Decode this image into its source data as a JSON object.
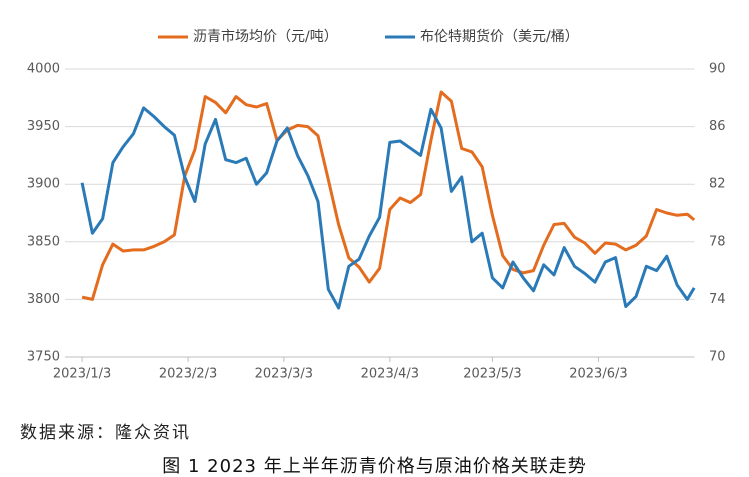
{
  "chart_data": {
    "type": "line",
    "title": "图 1  2023 年上半年沥青价格与原油价格关联走势",
    "source": "数据来源：隆众资讯",
    "x": [
      "2023/1/3",
      "2023/1/6",
      "2023/1/9",
      "2023/1/12",
      "2023/1/15",
      "2023/1/18",
      "2023/1/21",
      "2023/1/24",
      "2023/1/27",
      "2023/1/30",
      "2023/2/2",
      "2023/2/5",
      "2023/2/8",
      "2023/2/11",
      "2023/2/14",
      "2023/2/17",
      "2023/2/20",
      "2023/2/23",
      "2023/2/26",
      "2023/3/1",
      "2023/3/4",
      "2023/3/7",
      "2023/3/10",
      "2023/3/13",
      "2023/3/16",
      "2023/3/19",
      "2023/3/22",
      "2023/3/25",
      "2023/3/28",
      "2023/3/31",
      "2023/4/3",
      "2023/4/6",
      "2023/4/9",
      "2023/4/12",
      "2023/4/15",
      "2023/4/18",
      "2023/4/21",
      "2023/4/24",
      "2023/4/27",
      "2023/4/30",
      "2023/5/3",
      "2023/5/6",
      "2023/5/9",
      "2023/5/12",
      "2023/5/15",
      "2023/5/18",
      "2023/5/21",
      "2023/5/24",
      "2023/5/27",
      "2023/5/30",
      "2023/6/2",
      "2023/6/5",
      "2023/6/8",
      "2023/6/11",
      "2023/6/14",
      "2023/6/17",
      "2023/6/20",
      "2023/6/23",
      "2023/6/26",
      "2023/6/29",
      "2023/7/1"
    ],
    "series": [
      {
        "name": "沥青市场均价（元/吨）",
        "color": "#e46c1e",
        "values": [
          3802,
          3800,
          3830,
          3848,
          3842,
          3843,
          3843,
          3846,
          3850,
          3856,
          3907,
          3930,
          3976,
          3971,
          3962,
          3976,
          3969,
          3967,
          3970,
          3938,
          3947,
          3951,
          3950,
          3942,
          3904,
          3865,
          3836,
          3828,
          3815,
          3827,
          3878,
          3888,
          3884,
          3891,
          3938,
          3980,
          3972,
          3931,
          3928,
          3915,
          3873,
          3838,
          3826,
          3823,
          3825,
          3847,
          3865,
          3866,
          3854,
          3849,
          3840,
          3849,
          3848,
          3843,
          3847,
          3855,
          3878,
          3875,
          3873,
          3874,
          3869
        ]
      },
      {
        "name": "布伦特期货价（美元/桶）",
        "color": "#2a7ab8",
        "axis": "y2",
        "values": [
          82.1,
          78.6,
          79.6,
          83.5,
          84.6,
          85.5,
          87.3,
          86.7,
          86.0,
          85.4,
          82.5,
          80.8,
          84.8,
          86.5,
          83.7,
          83.5,
          83.8,
          82.0,
          82.8,
          85.0,
          85.9,
          84.0,
          82.6,
          80.8,
          74.7,
          73.4,
          76.3,
          76.8,
          78.4,
          79.7,
          84.9,
          85.0,
          84.5,
          84.0,
          87.2,
          85.9,
          81.5,
          82.5,
          78.0,
          78.6,
          75.5,
          74.8,
          76.6,
          75.5,
          74.6,
          76.4,
          75.7,
          77.6,
          76.3,
          75.8,
          75.2,
          76.6,
          76.9,
          73.5,
          74.2,
          76.3,
          76.0,
          77.0,
          75.0,
          74.0,
          74.8
        ]
      }
    ],
    "xlim": [
      "2022/12/29",
      "2023/7/2"
    ],
    "xticks": [
      "2023/1/3",
      "2023/2/3",
      "2023/3/3",
      "2023/4/3",
      "2023/5/3",
      "2023/6/3"
    ],
    "ylim": [
      3750,
      4000
    ],
    "yticks": [
      3750,
      3800,
      3850,
      3900,
      3950,
      4000
    ],
    "y2lim": [
      70,
      90
    ],
    "y2ticks": [
      70,
      74,
      78,
      82,
      86,
      90
    ],
    "grid": true,
    "legend": "top"
  }
}
